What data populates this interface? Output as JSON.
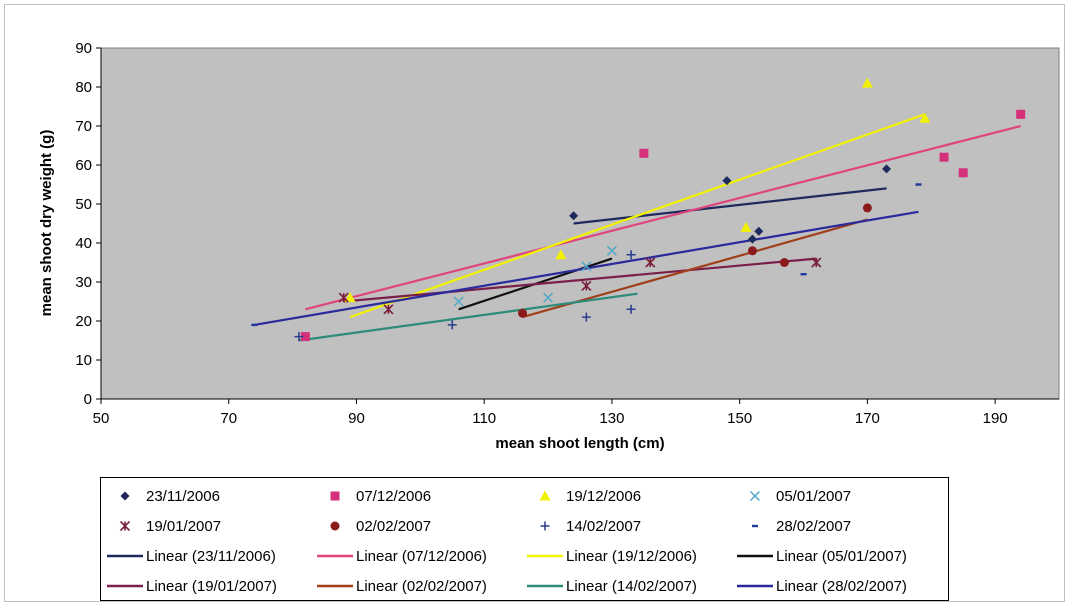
{
  "chart_data": {
    "type": "scatter",
    "title": "",
    "xlabel": "mean shoot length (cm)",
    "ylabel": "mean shoot  dry weight (g)",
    "xlim": [
      50,
      200
    ],
    "ylim": [
      0,
      90
    ],
    "xticks": [
      50,
      70,
      90,
      110,
      130,
      150,
      170,
      190
    ],
    "yticks": [
      0,
      10,
      20,
      30,
      40,
      50,
      60,
      70,
      80,
      90
    ],
    "plot_background": "#c0c0c0",
    "legend_position": "bottom",
    "series": [
      {
        "name": "23/11/2006",
        "marker": "diamond",
        "color": "#1f2a5c",
        "points": [
          [
            124,
            47
          ],
          [
            148,
            56
          ],
          [
            152,
            41
          ],
          [
            153,
            43
          ],
          [
            173,
            59
          ]
        ],
        "trendline": {
          "name": "Linear (23/11/2006)",
          "color": "#1f2a5c",
          "from": [
            124,
            45
          ],
          "to": [
            173,
            54
          ]
        }
      },
      {
        "name": "07/12/2006",
        "marker": "square",
        "color": "#d4317a",
        "points": [
          [
            82,
            16
          ],
          [
            135,
            63
          ],
          [
            182,
            62
          ],
          [
            185,
            58
          ],
          [
            194,
            73
          ]
        ],
        "trendline": {
          "name": "Linear (07/12/2006)",
          "color": "#e0447f",
          "from": [
            82,
            23
          ],
          "to": [
            194,
            70
          ]
        }
      },
      {
        "name": "19/12/2006",
        "marker": "triangle",
        "color": "#f2f200",
        "points": [
          [
            89,
            26
          ],
          [
            122,
            37
          ],
          [
            151,
            44
          ],
          [
            170,
            81
          ],
          [
            179,
            72
          ]
        ],
        "trendline": {
          "name": "Linear (19/12/2006)",
          "color": "#f2f200",
          "from": [
            89,
            21
          ],
          "to": [
            179,
            73
          ]
        }
      },
      {
        "name": "05/01/2007",
        "marker": "x",
        "color": "#4fa8c8",
        "points": [
          [
            106,
            25
          ],
          [
            120,
            26
          ],
          [
            130,
            38
          ],
          [
            126,
            34
          ]
        ],
        "trendline": {
          "name": "Linear (05/01/2007)",
          "color": "#111111",
          "from": [
            106,
            23
          ],
          "to": [
            130,
            36
          ]
        }
      },
      {
        "name": "19/01/2007",
        "marker": "star",
        "color": "#7a1f3a",
        "points": [
          [
            88,
            26
          ],
          [
            95,
            23
          ],
          [
            126,
            29
          ],
          [
            136,
            35
          ],
          [
            162,
            35
          ]
        ],
        "trendline": {
          "name": "Linear (19/01/2007)",
          "color": "#7a1f4a",
          "from": [
            88,
            25
          ],
          "to": [
            162,
            36
          ]
        }
      },
      {
        "name": "02/02/2007",
        "marker": "circle",
        "color": "#8b1a1a",
        "points": [
          [
            116,
            22
          ],
          [
            152,
            38
          ],
          [
            157,
            35
          ],
          [
            170,
            49
          ]
        ],
        "trendline": {
          "name": "Linear (02/02/2007)",
          "color": "#a0401a",
          "from": [
            116,
            21
          ],
          "to": [
            170,
            46
          ]
        }
      },
      {
        "name": "14/02/2007",
        "marker": "plus",
        "color": "#2a3c8c",
        "points": [
          [
            81,
            16
          ],
          [
            105,
            19
          ],
          [
            126,
            21
          ],
          [
            133,
            23
          ],
          [
            133,
            37
          ]
        ],
        "trendline": {
          "name": "Linear (14/02/2007)",
          "color": "#2e8b7a",
          "from": [
            81,
            15
          ],
          "to": [
            134,
            27
          ]
        }
      },
      {
        "name": "28/02/2007",
        "marker": "dash",
        "color": "#1f3a9c",
        "points": [
          [
            74,
            19
          ],
          [
            160,
            32
          ],
          [
            178,
            55
          ]
        ],
        "trendline": {
          "name": "Linear (28/02/2007)",
          "color": "#2a2a9c",
          "from": [
            74,
            19
          ],
          "to": [
            178,
            48
          ]
        }
      }
    ]
  }
}
